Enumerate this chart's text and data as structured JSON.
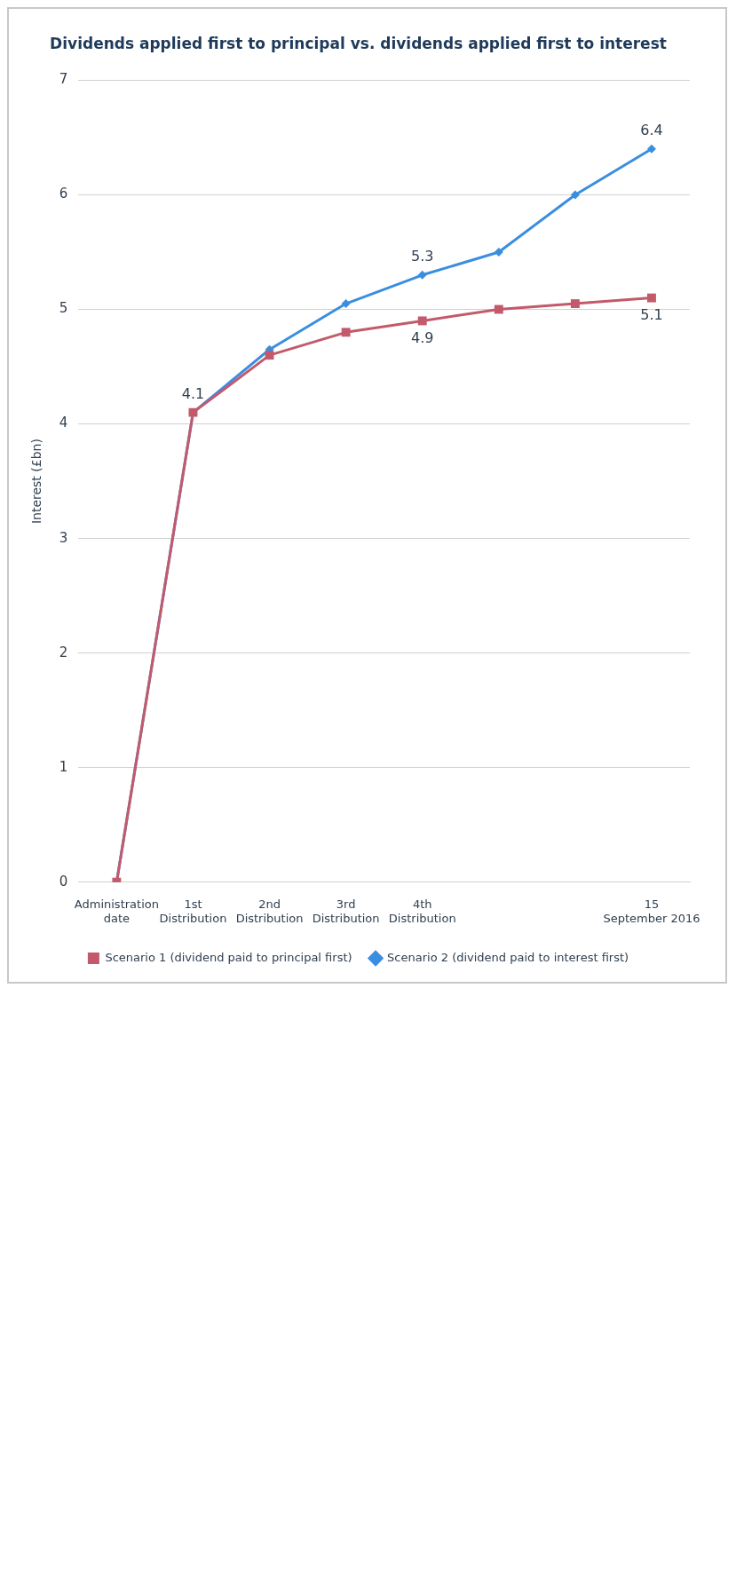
{
  "chart_data": {
    "type": "line",
    "title": "Dividends applied first to principal vs. dividends applied first to interest",
    "ylabel": "Interest (£bn)",
    "categories": [
      "Administration date",
      "1st Distribution",
      "2nd Distribution",
      "3rd Distribution",
      "4th Distribution",
      null,
      null,
      "15 September 2016"
    ],
    "series": [
      {
        "name": "Scenario 1 (dividend paid to principal first)",
        "color": "#c25a6c",
        "marker": "square",
        "values": [
          0,
          4.1,
          4.6,
          4.8,
          4.9,
          5.0,
          5.05,
          5.1
        ],
        "value_labels": [
          null,
          null,
          null,
          null,
          "4.9",
          null,
          null,
          "5.1"
        ]
      },
      {
        "name": "Scenario 2 (dividend paid to interest first)",
        "color": "#3a8ee0",
        "marker": "diamond",
        "values": [
          0,
          4.1,
          4.65,
          5.05,
          5.3,
          5.5,
          6.0,
          6.4
        ],
        "value_labels": [
          null,
          "4.1",
          null,
          null,
          "5.3",
          null,
          null,
          "6.4"
        ]
      }
    ],
    "ylim": [
      0,
      7
    ],
    "yticks": [
      0,
      1,
      2,
      3,
      4,
      5,
      6,
      7
    ],
    "grid": "y",
    "legend": "bottom"
  }
}
